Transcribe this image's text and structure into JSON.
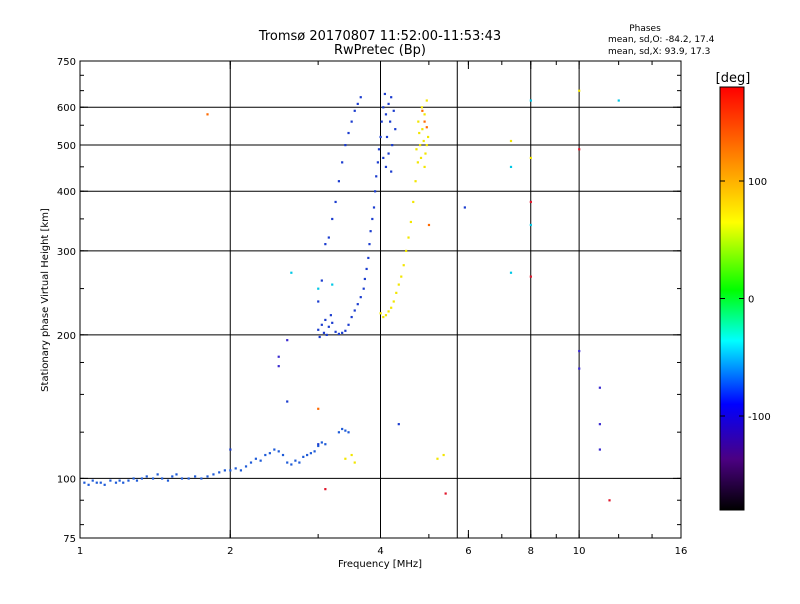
{
  "chart_data": {
    "type": "scatter",
    "title": "Tromsø 20170807 11:52:00-11:53:43",
    "subtitle": "RwPretec (Bp)",
    "stats": {
      "header": "Phases",
      "line_o": "mean, sd,O: -84.2, 17.4",
      "line_x": "mean, sd,X:  93.9, 17.3"
    },
    "xlabel": "Frequency [MHz]",
    "ylabel": "Stationary phase Virtual Height [km]",
    "x_scale": "log",
    "y_scale": "log",
    "xlim": [
      1,
      16
    ],
    "ylim": [
      75,
      750
    ],
    "xticks": [
      {
        "value": 1,
        "label": "1"
      },
      {
        "value": 2,
        "label": "2"
      },
      {
        "value": 4,
        "label": "4"
      },
      {
        "value": 6,
        "label": "6"
      },
      {
        "value": 8,
        "label": "8"
      },
      {
        "value": 10,
        "label": "10"
      },
      {
        "value": 16,
        "label": "16"
      }
    ],
    "yticks": [
      {
        "value": 75,
        "label": "75"
      },
      {
        "value": 100,
        "label": "100"
      },
      {
        "value": 200,
        "label": "200"
      },
      {
        "value": 300,
        "label": "300"
      },
      {
        "value": 400,
        "label": "400"
      },
      {
        "value": 500,
        "label": "500"
      },
      {
        "value": 600,
        "label": "600"
      },
      {
        "value": 750,
        "label": "750"
      }
    ],
    "x_gridlines": [
      2,
      4,
      5.7,
      8,
      10
    ],
    "y_gridlines": [
      100,
      200,
      300,
      400,
      500,
      600
    ],
    "grid": true,
    "colorbar": {
      "label": "[deg]",
      "range": [
        -180,
        180
      ],
      "ticks": [
        {
          "value": 100,
          "label": "100"
        },
        {
          "value": 0,
          "label": "0"
        },
        {
          "value": -100,
          "label": "-100"
        }
      ],
      "colors": [
        "#000000",
        "#4b0082",
        "#0000ff",
        "#00ffff",
        "#00ff00",
        "#ffff00",
        "#ff7f00",
        "#ff0000"
      ]
    },
    "series": [
      {
        "color": "#1e5bd8",
        "phase": -95,
        "points": [
          [
            1.02,
            98
          ],
          [
            1.04,
            97
          ],
          [
            1.06,
            99
          ],
          [
            1.08,
            98
          ],
          [
            1.1,
            98
          ],
          [
            1.12,
            97
          ],
          [
            1.15,
            99
          ],
          [
            1.18,
            98
          ],
          [
            1.2,
            99
          ],
          [
            1.22,
            98
          ],
          [
            1.25,
            99
          ],
          [
            1.28,
            100
          ],
          [
            1.3,
            99
          ],
          [
            1.33,
            100
          ],
          [
            1.36,
            101
          ],
          [
            1.4,
            100
          ],
          [
            1.43,
            102
          ],
          [
            1.46,
            100
          ],
          [
            1.5,
            99
          ],
          [
            1.53,
            101
          ],
          [
            1.56,
            102
          ],
          [
            1.6,
            100
          ],
          [
            1.65,
            100
          ],
          [
            1.7,
            101
          ],
          [
            1.75,
            100
          ],
          [
            1.8,
            101
          ],
          [
            1.85,
            102
          ],
          [
            1.9,
            103
          ],
          [
            1.95,
            104
          ],
          [
            2.0,
            104
          ],
          [
            2.05,
            105
          ],
          [
            2.1,
            104
          ],
          [
            2.15,
            106
          ],
          [
            2.2,
            108
          ],
          [
            2.25,
            110
          ],
          [
            2.3,
            109
          ],
          [
            2.35,
            112
          ],
          [
            2.4,
            113
          ],
          [
            2.45,
            115
          ],
          [
            2.5,
            114
          ],
          [
            2.55,
            112
          ],
          [
            2.6,
            108
          ],
          [
            2.65,
            107
          ],
          [
            2.7,
            109
          ],
          [
            2.75,
            108
          ],
          [
            2.8,
            111
          ],
          [
            2.85,
            112
          ],
          [
            2.9,
            113
          ],
          [
            2.95,
            114
          ],
          [
            3.0,
            117
          ],
          [
            3.05,
            119
          ],
          [
            3.1,
            118
          ],
          [
            3.3,
            125
          ],
          [
            3.35,
            127
          ],
          [
            3.4,
            126
          ],
          [
            3.45,
            125
          ]
        ]
      },
      {
        "color": "#1a3ccf",
        "phase": -100,
        "points": [
          [
            3.0,
            205
          ],
          [
            3.02,
            198
          ],
          [
            3.05,
            210
          ],
          [
            3.08,
            202
          ],
          [
            3.1,
            215
          ],
          [
            3.12,
            200
          ],
          [
            3.15,
            208
          ],
          [
            3.18,
            220
          ],
          [
            3.2,
            212
          ],
          [
            3.25,
            203
          ],
          [
            3.3,
            201
          ],
          [
            3.35,
            202
          ],
          [
            3.4,
            204
          ],
          [
            3.45,
            210
          ],
          [
            3.5,
            218
          ],
          [
            3.55,
            225
          ],
          [
            3.6,
            232
          ],
          [
            3.65,
            240
          ],
          [
            3.7,
            250
          ],
          [
            3.72,
            262
          ],
          [
            3.75,
            275
          ],
          [
            3.78,
            290
          ],
          [
            3.8,
            310
          ],
          [
            3.82,
            330
          ],
          [
            3.85,
            350
          ],
          [
            3.88,
            370
          ],
          [
            3.9,
            400
          ],
          [
            3.92,
            430
          ],
          [
            3.95,
            460
          ],
          [
            3.97,
            490
          ],
          [
            4.0,
            520
          ],
          [
            4.02,
            560
          ],
          [
            4.05,
            600
          ],
          [
            4.08,
            640
          ],
          [
            4.1,
            580
          ],
          [
            4.12,
            520
          ],
          [
            4.15,
            610
          ],
          [
            4.18,
            560
          ],
          [
            4.2,
            630
          ],
          [
            4.22,
            500
          ],
          [
            4.25,
            590
          ],
          [
            4.28,
            540
          ],
          [
            3.0,
            235
          ],
          [
            3.05,
            260
          ],
          [
            3.1,
            310
          ],
          [
            3.15,
            320
          ],
          [
            3.2,
            350
          ],
          [
            3.25,
            380
          ],
          [
            3.3,
            420
          ],
          [
            3.35,
            460
          ],
          [
            3.4,
            500
          ],
          [
            3.45,
            530
          ],
          [
            3.5,
            560
          ],
          [
            3.55,
            590
          ],
          [
            3.6,
            610
          ],
          [
            3.65,
            630
          ],
          [
            4.05,
            470
          ],
          [
            4.1,
            450
          ],
          [
            4.15,
            480
          ],
          [
            4.2,
            440
          ],
          [
            2.0,
            115
          ],
          [
            2.6,
            145
          ],
          [
            3.0,
            118
          ],
          [
            4.35,
            130
          ],
          [
            5.9,
            370
          ]
        ]
      },
      {
        "color": "#f2e600",
        "phase": 100,
        "points": [
          [
            4.0,
            222
          ],
          [
            4.05,
            218
          ],
          [
            4.1,
            220
          ],
          [
            4.15,
            224
          ],
          [
            4.2,
            228
          ],
          [
            4.25,
            235
          ],
          [
            4.3,
            245
          ],
          [
            4.35,
            255
          ],
          [
            4.4,
            265
          ],
          [
            4.45,
            280
          ],
          [
            4.5,
            300
          ],
          [
            4.55,
            320
          ],
          [
            4.6,
            345
          ],
          [
            4.65,
            380
          ],
          [
            4.7,
            420
          ],
          [
            4.75,
            460
          ],
          [
            4.8,
            500
          ],
          [
            4.85,
            540
          ],
          [
            4.9,
            580
          ],
          [
            4.95,
            620
          ],
          [
            4.72,
            490
          ],
          [
            4.78,
            530
          ],
          [
            4.82,
            470
          ],
          [
            4.88,
            510
          ],
          [
            4.92,
            480
          ],
          [
            4.98,
            520
          ],
          [
            4.76,
            560
          ],
          [
            4.84,
            600
          ],
          [
            4.9,
            450
          ],
          [
            4.95,
            500
          ],
          [
            3.4,
            110
          ],
          [
            3.5,
            112
          ],
          [
            3.55,
            108
          ],
          [
            5.2,
            110
          ],
          [
            5.35,
            112
          ],
          [
            7.3,
            510
          ],
          [
            8.0,
            470
          ],
          [
            10.0,
            650
          ]
        ]
      },
      {
        "color": "#ff6a00",
        "phase": 150,
        "points": [
          [
            4.9,
            560
          ],
          [
            4.95,
            545
          ],
          [
            4.85,
            590
          ],
          [
            3.0,
            140
          ],
          [
            1.8,
            580
          ],
          [
            5.0,
            340
          ]
        ]
      },
      {
        "color": "#00c8e6",
        "phase": -40,
        "points": [
          [
            2.65,
            270
          ],
          [
            3.0,
            250
          ],
          [
            3.2,
            255
          ],
          [
            7.3,
            270
          ],
          [
            7.3,
            450
          ],
          [
            8.0,
            340
          ],
          [
            8.0,
            620
          ],
          [
            12.0,
            620
          ]
        ]
      },
      {
        "color": "#3a2ad0",
        "phase": -130,
        "points": [
          [
            10.0,
            185
          ],
          [
            10.0,
            170
          ],
          [
            11.0,
            155
          ],
          [
            11.0,
            130
          ],
          [
            11.0,
            115
          ],
          [
            2.5,
            180
          ],
          [
            2.6,
            195
          ],
          [
            2.5,
            172
          ]
        ]
      },
      {
        "color": "#e0142a",
        "phase": 170,
        "points": [
          [
            3.1,
            95
          ],
          [
            5.4,
            93
          ],
          [
            8.0,
            380
          ],
          [
            11.5,
            90
          ],
          [
            8.0,
            265
          ],
          [
            10.0,
            490
          ]
        ]
      }
    ]
  }
}
